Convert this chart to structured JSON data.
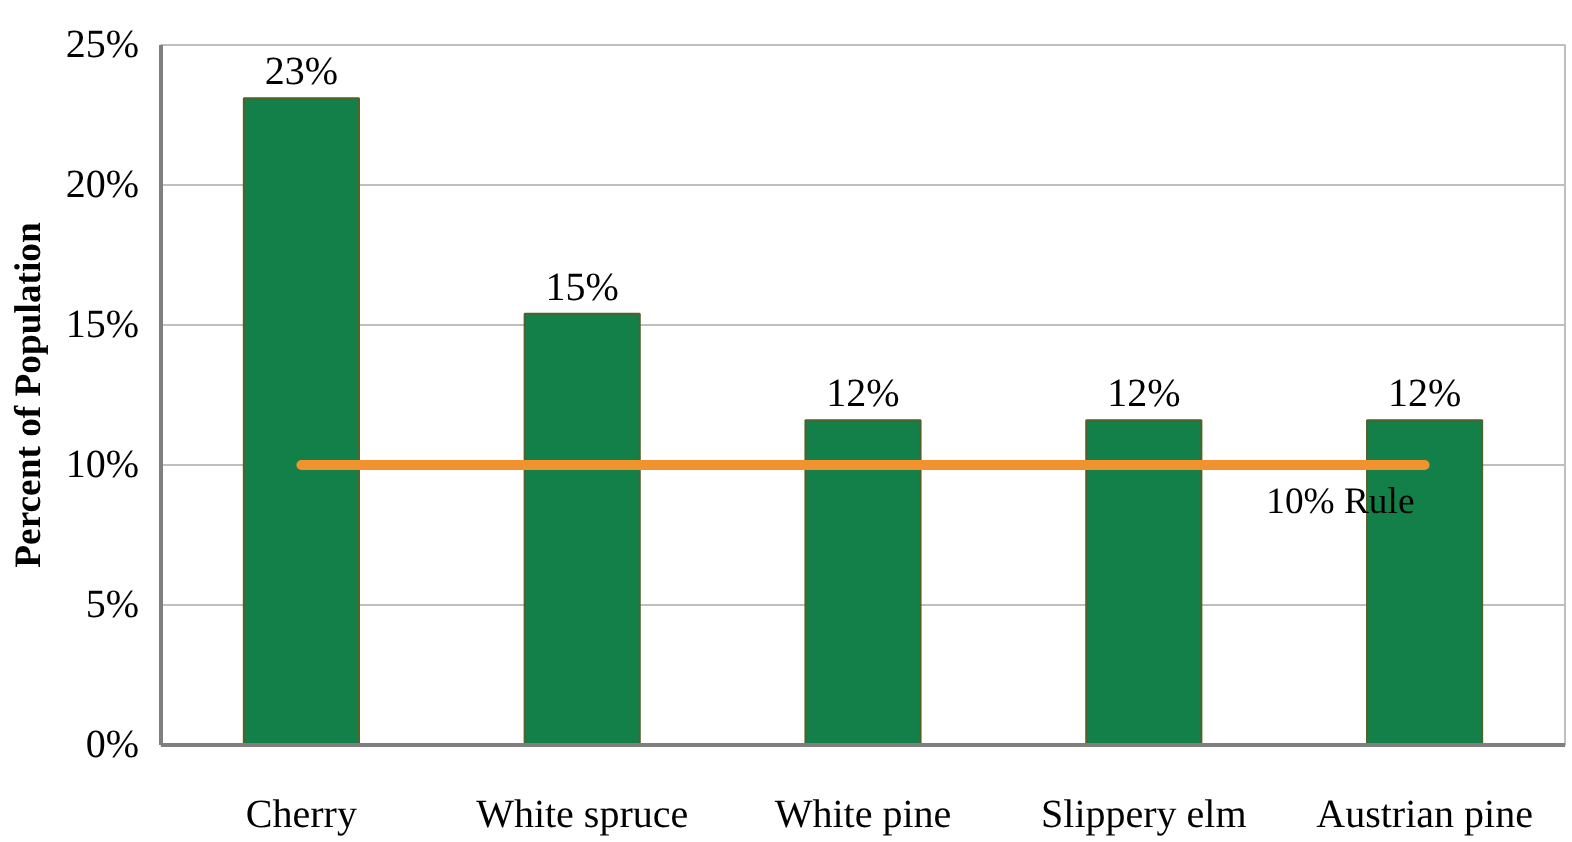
{
  "chart_data": {
    "type": "bar",
    "ylabel": "Percent of Population",
    "categories": [
      "Cherry",
      "White spruce",
      "White pine",
      "Slippery elm",
      "Austrian pine"
    ],
    "values": [
      23.1,
      15.4,
      11.6,
      11.6,
      11.6
    ],
    "value_labels": [
      "23%",
      "15%",
      "12%",
      "12%",
      "12%"
    ],
    "color": "#138049",
    "ylim": [
      0,
      25
    ],
    "yticks": [
      {
        "value": 0,
        "label": "0%"
      },
      {
        "value": 5,
        "label": "5%"
      },
      {
        "value": 10,
        "label": "10%"
      },
      {
        "value": 15,
        "label": "15%"
      },
      {
        "value": 20,
        "label": "20%"
      },
      {
        "value": 25,
        "label": "25%"
      }
    ],
    "grid": "y",
    "ref_lines": [
      {
        "axis": "y",
        "value": 10,
        "label": "10% Rule",
        "color": "#f0922e"
      }
    ]
  }
}
